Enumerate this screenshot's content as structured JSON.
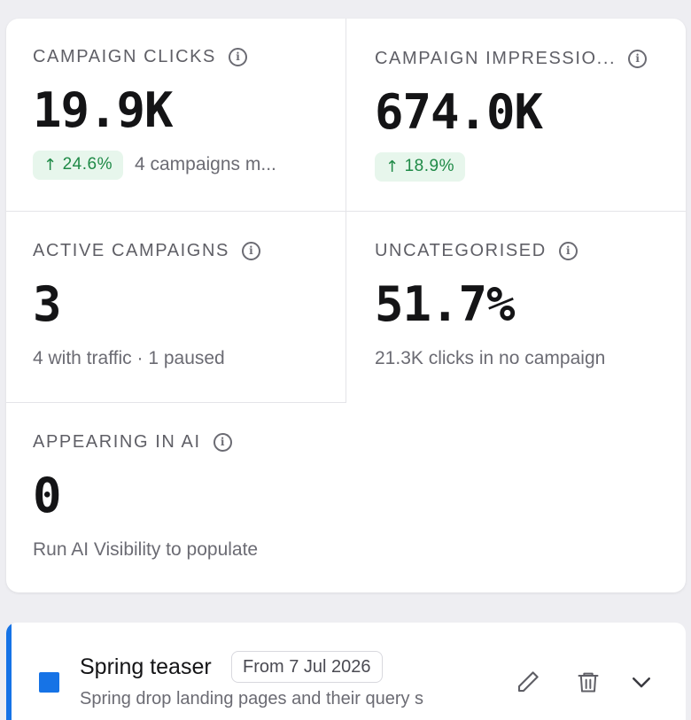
{
  "stats": [
    {
      "label": "CAMPAIGN CLICKS",
      "value": "19.9K",
      "badge": "24.6%",
      "sub": "4 campaigns m..."
    },
    {
      "label": "CAMPAIGN IMPRESSIO...",
      "value": "674.0K",
      "badge": "18.9%",
      "sub": ""
    },
    {
      "label": "ACTIVE CAMPAIGNS",
      "value": "3",
      "sub": "4 with traffic · 1 paused"
    },
    {
      "label": "UNCATEGORISED",
      "value": "51.7%",
      "sub": "21.3K clicks in no campaign"
    },
    {
      "label": "APPEARING IN AI",
      "value": "0",
      "sub": "Run AI Visibility to populate"
    }
  ],
  "icons": {
    "info": "info-icon",
    "trend": "arrow-up-icon",
    "edit": "pencil-icon",
    "delete": "trash-icon",
    "expand": "chevron-down-icon"
  },
  "colors": {
    "accent": "#1673e6",
    "positive": "#1f8a47",
    "positive_bg": "#e7f6ec"
  },
  "campaign": {
    "name": "Spring teaser",
    "date_badge": "From 7 Jul 2026",
    "description": "Spring drop landing pages and their query s",
    "color": "#1673e6"
  }
}
